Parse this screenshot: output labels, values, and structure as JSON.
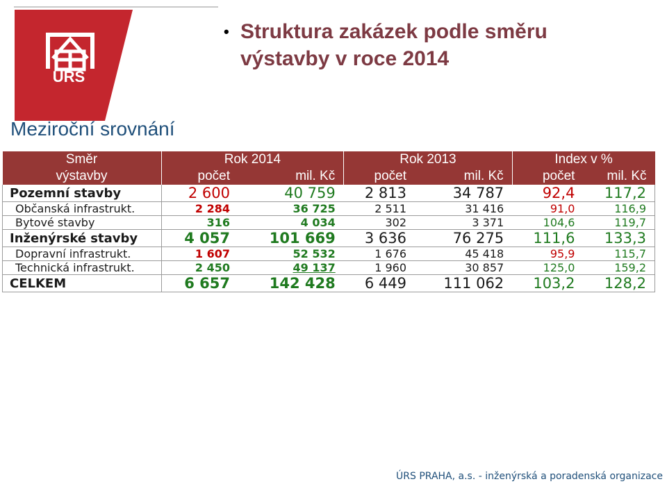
{
  "logo": {
    "text": "ÚRS"
  },
  "title": "Struktura zakázek podle směru výstavby v roce 2014",
  "title_line1": "Struktura zakázek podle směru",
  "title_line2": "výstavby v roce 2014",
  "subtitle": "Meziroční srovnání",
  "table": {
    "corner": [
      "Směr",
      "výstavby"
    ],
    "years": [
      "Rok 2014",
      "Rok 2013",
      "Index v %"
    ],
    "cols": [
      "počet",
      "mil. Kč",
      "počet",
      "mil. Kč",
      "počet",
      "mil. Kč"
    ],
    "rows": [
      {
        "label": "Pozemní stavby",
        "values": [
          "2 600",
          "40 759",
          "2 813",
          "34 787",
          "92,4",
          "117,2"
        ]
      },
      {
        "label": "Občanská infrastrukt.",
        "values": [
          "2 284",
          "36 725",
          "2 511",
          "31 416",
          "91,0",
          "116,9"
        ]
      },
      {
        "label": "Bytové stavby",
        "values": [
          "316",
          "4 034",
          "302",
          "3 371",
          "104,6",
          "119,7"
        ]
      },
      {
        "label": "Inženýrské stavby",
        "values": [
          "4 057",
          "101 669",
          "3 636",
          "76 275",
          "111,6",
          "133,3"
        ]
      },
      {
        "label": "Dopravní infrastrukt.",
        "values": [
          "1 607",
          "52 532",
          "1 676",
          "45 418",
          "95,9",
          "115,7"
        ]
      },
      {
        "label": "Technická infrastrukt.",
        "values": [
          "2 450",
          "49 137",
          "1 960",
          "30 857",
          "125,0",
          "159,2"
        ]
      },
      {
        "label": "CELKEM",
        "values": [
          "6 657",
          "142 428",
          "6 449",
          "111 062",
          "103,2",
          "128,2"
        ]
      }
    ]
  },
  "footer": "ÚRS PRAHA, a.s. - inženýrská a poradenská organizace",
  "colors": {
    "header_bg": "#953735",
    "title": "#7d3a43",
    "red": "#c00000",
    "green": "#1f7a1f",
    "blue": "#1f4f7a"
  }
}
